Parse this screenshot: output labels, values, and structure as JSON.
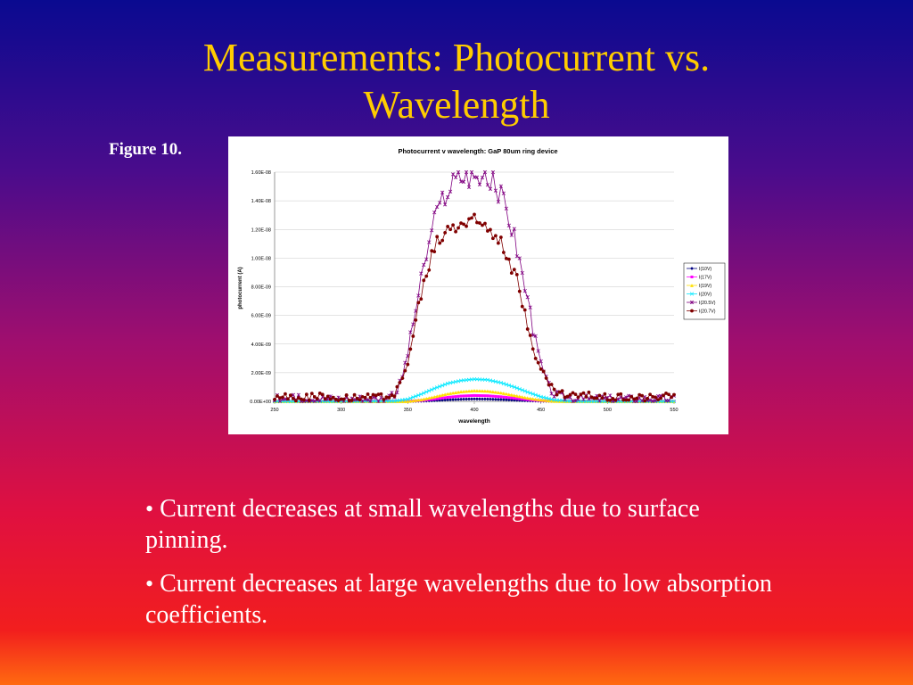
{
  "slide": {
    "title_line1": "Measurements: Photocurrent vs.",
    "title_line2": "Wavelength",
    "figure_label": "Figure 10.",
    "bullet_char": "•",
    "bullets": [
      "Current decreases at small wavelengths due to surface pinning.",
      "Current decreases at large wavelengths due to low absorption coefficients."
    ]
  },
  "colors": {
    "title": "#ffcc00",
    "text": "#ffffff",
    "chart_bg": "#ffffff",
    "gridline": "#c8c8c8"
  },
  "chart_data": {
    "type": "line",
    "title": "Photocurrent v wavelength: GaP 80um ring device",
    "xlabel": "wavelength",
    "ylabel": "photocurrent (A)",
    "xlim": [
      250,
      550
    ],
    "ylim": [
      0,
      1.6e-08
    ],
    "xticks": [
      250,
      300,
      350,
      400,
      450,
      500,
      550
    ],
    "xtick_labels": [
      "250",
      "300",
      "350",
      "400",
      "450",
      "500",
      "550"
    ],
    "yticks": [
      0,
      2e-09,
      4e-09,
      6e-09,
      8e-09,
      1e-08,
      1.2e-08,
      1.4e-08,
      1.6e-08
    ],
    "ytick_labels": [
      "0.00E+00",
      "2.00E-09",
      "4.00E-09",
      "6.00E-09",
      "8.00E-09",
      "1.00E-08",
      "1.20E-08",
      "1.40E-08",
      "1.60E-08"
    ],
    "grid": "horizontal",
    "legend": "right",
    "x_step": 2,
    "series": [
      {
        "name": "I(10V)",
        "color": "#000080",
        "marker": "diamond",
        "x": [
          250,
          300,
          350,
          360,
          370,
          380,
          390,
          400,
          410,
          420,
          430,
          440,
          450,
          460,
          470,
          500,
          550
        ],
        "y": [
          0,
          0,
          0,
          2e-11,
          6e-11,
          1.1e-10,
          1.5e-10,
          1.7e-10,
          1.6e-10,
          1.3e-10,
          9e-11,
          5e-11,
          2e-11,
          1e-11,
          0,
          0,
          0
        ]
      },
      {
        "name": "I(17V)",
        "color": "#ff00ff",
        "marker": "square",
        "x": [
          250,
          300,
          350,
          360,
          370,
          380,
          390,
          400,
          410,
          420,
          430,
          440,
          450,
          460,
          470,
          500,
          550
        ],
        "y": [
          0,
          0,
          0,
          6e-11,
          1.6e-10,
          2.8e-10,
          3.7e-10,
          4.1e-10,
          3.9e-10,
          3.2e-10,
          2.2e-10,
          1.2e-10,
          5e-11,
          1e-11,
          0,
          0,
          0
        ]
      },
      {
        "name": "I(19V)",
        "color": "#ffe000",
        "marker": "triangle",
        "x": [
          250,
          300,
          350,
          360,
          370,
          380,
          390,
          400,
          410,
          420,
          430,
          440,
          450,
          460,
          470,
          500,
          550
        ],
        "y": [
          0,
          0,
          0,
          1.2e-10,
          3.2e-10,
          5.3e-10,
          6.8e-10,
          7.5e-10,
          7.2e-10,
          6e-10,
          4.2e-10,
          2.4e-10,
          1e-10,
          2e-11,
          0,
          0,
          0
        ]
      },
      {
        "name": "I(20V)",
        "color": "#00e8ff",
        "marker": "x",
        "x": [
          250,
          300,
          340,
          350,
          360,
          370,
          380,
          390,
          400,
          410,
          420,
          430,
          440,
          450,
          460,
          470,
          480,
          500,
          550
        ],
        "y": [
          0,
          0,
          2e-11,
          1.5e-10,
          5e-10,
          9e-10,
          1.25e-09,
          1.45e-09,
          1.55e-09,
          1.5e-09,
          1.3e-09,
          1e-09,
          6.5e-10,
          3.2e-10,
          1e-10,
          2e-11,
          0,
          0,
          0
        ]
      },
      {
        "name": "I(20.5V)",
        "color": "#800080",
        "marker": "star",
        "noisy": true,
        "x": [
          250,
          330,
          340,
          345,
          350,
          355,
          360,
          365,
          370,
          375,
          380,
          385,
          390,
          395,
          400,
          405,
          410,
          415,
          420,
          425,
          430,
          435,
          440,
          445,
          450,
          455,
          460,
          470,
          480,
          500,
          550
        ],
        "y": [
          2e-10,
          2e-10,
          4e-10,
          1.4e-09,
          3.4e-09,
          6e-09,
          8.4e-09,
          1.06e-08,
          1.24e-08,
          1.38e-08,
          1.48e-08,
          1.54e-08,
          1.57e-08,
          1.58e-08,
          1.57e-08,
          1.56e-08,
          1.54e-08,
          1.5e-08,
          1.43e-08,
          1.32e-08,
          1.15e-08,
          9.4e-09,
          7e-09,
          4.6e-09,
          2.6e-09,
          1.2e-09,
          5e-10,
          3e-10,
          2e-10,
          2e-10,
          2e-10
        ]
      },
      {
        "name": "I(20.7V)",
        "color": "#800000",
        "marker": "circle",
        "noisy": true,
        "x": [
          250,
          330,
          340,
          345,
          350,
          355,
          360,
          365,
          370,
          375,
          380,
          385,
          390,
          395,
          400,
          405,
          410,
          415,
          420,
          425,
          430,
          435,
          440,
          445,
          450,
          455,
          460,
          470,
          480,
          500,
          550
        ],
        "y": [
          3e-10,
          3e-10,
          6e-10,
          1.2e-09,
          2.8e-09,
          5e-09,
          7.4e-09,
          9.2e-09,
          1.06e-08,
          1.15e-08,
          1.2e-08,
          1.23e-08,
          1.25e-08,
          1.25e-08,
          1.24e-08,
          1.24e-08,
          1.23e-08,
          1.2e-08,
          1.14e-08,
          1.04e-08,
          9e-09,
          7.2e-09,
          5.4e-09,
          3.6e-09,
          2.2e-09,
          1.3e-09,
          7e-10,
          4e-10,
          4e-10,
          3e-10,
          3e-10
        ]
      }
    ]
  }
}
